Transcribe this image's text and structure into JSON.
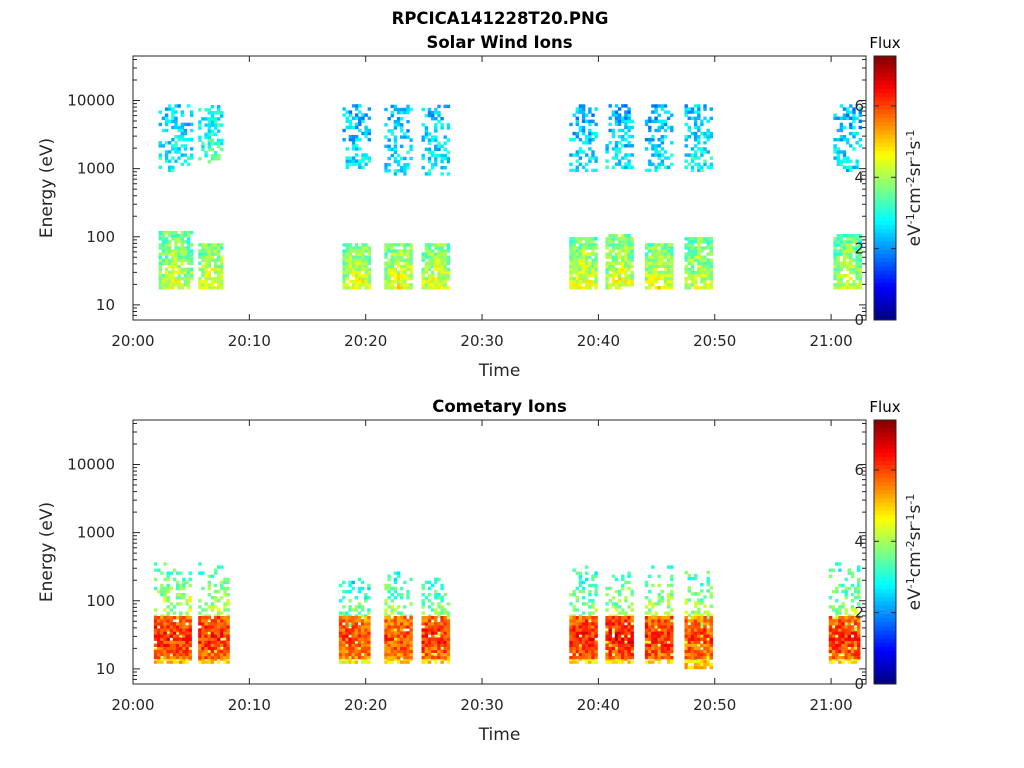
{
  "figure_title": "RPCICA141228T20.PNG",
  "chart_data": [
    {
      "type": "heatmap",
      "title": "Solar Wind Ions",
      "xlabel": "Time",
      "ylabel": "Energy (eV)",
      "xticks": [
        "20:00",
        "20:10",
        "20:20",
        "20:30",
        "20:40",
        "20:50",
        "21:00"
      ],
      "xlim": [
        "20:00",
        "21:03"
      ],
      "yscale": "log",
      "yticks": [
        10,
        100,
        1000,
        10000
      ],
      "ylim": [
        6,
        45000
      ],
      "colorbar": {
        "title": "Flux",
        "label": "eV-1cm-2sr-1s-1",
        "ticks": [
          0,
          2,
          4,
          6
        ],
        "range": [
          0,
          7.4
        ],
        "colormap": "jet"
      },
      "bursts": [
        {
          "start": "20:02.2",
          "end": "20:04.9",
          "low_band": {
            "emin": 17,
            "emax": 110,
            "flux": 3.6
          },
          "high_band": {
            "emin": 900,
            "emax": 8000,
            "flux": 2.6
          }
        },
        {
          "start": "20:05.6",
          "end": "20:07.6",
          "low_band": {
            "emin": 17,
            "emax": 80,
            "flux": 3.8
          },
          "high_band": {
            "emin": 1200,
            "emax": 8000,
            "flux": 3.0
          }
        },
        {
          "start": "20:18.0",
          "end": "20:20.3",
          "low_band": {
            "emin": 17,
            "emax": 80,
            "flux": 3.8
          },
          "high_band": {
            "emin": 1000,
            "emax": 8000,
            "flux": 2.4
          }
        },
        {
          "start": "20:21.6",
          "end": "20:24.0",
          "low_band": {
            "emin": 17,
            "emax": 80,
            "flux": 3.8
          },
          "high_band": {
            "emin": 800,
            "emax": 8000,
            "flux": 2.5
          }
        },
        {
          "start": "20:24.8",
          "end": "20:27.0",
          "low_band": {
            "emin": 17,
            "emax": 80,
            "flux": 3.8
          },
          "high_band": {
            "emin": 800,
            "emax": 8000,
            "flux": 2.5
          }
        },
        {
          "start": "20:37.5",
          "end": "20:39.8",
          "low_band": {
            "emin": 17,
            "emax": 90,
            "flux": 3.8
          },
          "high_band": {
            "emin": 900,
            "emax": 8000,
            "flux": 2.4
          }
        },
        {
          "start": "20:40.6",
          "end": "20:43.0",
          "low_band": {
            "emin": 17,
            "emax": 100,
            "flux": 3.8
          },
          "high_band": {
            "emin": 1000,
            "emax": 8000,
            "flux": 2.4
          }
        },
        {
          "start": "20:44.0",
          "end": "20:46.2",
          "low_band": {
            "emin": 17,
            "emax": 80,
            "flux": 3.8
          },
          "high_band": {
            "emin": 900,
            "emax": 8000,
            "flux": 2.4
          }
        },
        {
          "start": "20:47.4",
          "end": "20:49.7",
          "low_band": {
            "emin": 17,
            "emax": 90,
            "flux": 3.6
          },
          "high_band": {
            "emin": 900,
            "emax": 8000,
            "flux": 2.6
          }
        },
        {
          "start": "21:00.2",
          "end": "21:02.4",
          "low_band": {
            "emin": 17,
            "emax": 100,
            "flux": 3.6
          },
          "high_band": {
            "emin": 900,
            "emax": 8000,
            "flux": 2.4
          }
        }
      ]
    },
    {
      "type": "heatmap",
      "title": "Cometary Ions",
      "xlabel": "Time",
      "ylabel": "Energy (eV)",
      "xticks": [
        "20:00",
        "20:10",
        "20:20",
        "20:30",
        "20:40",
        "20:50",
        "21:00"
      ],
      "xlim": [
        "20:00",
        "21:03"
      ],
      "yscale": "log",
      "yticks": [
        10,
        100,
        1000,
        10000
      ],
      "ylim": [
        6,
        45000
      ],
      "colorbar": {
        "title": "Flux",
        "label": "eV-1cm-2sr-1s-1",
        "ticks": [
          0,
          2,
          4,
          6
        ],
        "range": [
          0,
          7.4
        ],
        "colormap": "jet"
      },
      "bursts": [
        {
          "start": "20:01.8",
          "end": "20:04.9",
          "core": {
            "emin": 14,
            "emax": 55,
            "flux": 6.2
          },
          "halo": {
            "emin": 12,
            "emax": 350,
            "flux": 3.8
          }
        },
        {
          "start": "20:05.6",
          "end": "20:08.1",
          "core": {
            "emin": 14,
            "emax": 55,
            "flux": 6.2
          },
          "halo": {
            "emin": 12,
            "emax": 350,
            "flux": 3.8
          }
        },
        {
          "start": "20:17.7",
          "end": "20:20.3",
          "core": {
            "emin": 14,
            "emax": 55,
            "flux": 6.0
          },
          "halo": {
            "emin": 12,
            "emax": 200,
            "flux": 3.4
          }
        },
        {
          "start": "20:21.6",
          "end": "20:24.0",
          "core": {
            "emin": 14,
            "emax": 55,
            "flux": 6.0
          },
          "halo": {
            "emin": 12,
            "emax": 250,
            "flux": 3.6
          }
        },
        {
          "start": "20:24.8",
          "end": "20:27.0",
          "core": {
            "emin": 14,
            "emax": 55,
            "flux": 6.2
          },
          "halo": {
            "emin": 12,
            "emax": 200,
            "flux": 3.6
          }
        },
        {
          "start": "20:37.5",
          "end": "20:39.8",
          "core": {
            "emin": 14,
            "emax": 55,
            "flux": 6.2
          },
          "halo": {
            "emin": 12,
            "emax": 300,
            "flux": 3.6
          }
        },
        {
          "start": "20:40.6",
          "end": "20:43.0",
          "core": {
            "emin": 14,
            "emax": 55,
            "flux": 6.4
          },
          "halo": {
            "emin": 12,
            "emax": 250,
            "flux": 3.8
          }
        },
        {
          "start": "20:44.0",
          "end": "20:46.2",
          "core": {
            "emin": 14,
            "emax": 55,
            "flux": 6.2
          },
          "halo": {
            "emin": 12,
            "emax": 300,
            "flux": 3.8
          }
        },
        {
          "start": "20:47.4",
          "end": "20:49.7",
          "core": {
            "emin": 14,
            "emax": 55,
            "flux": 6.0
          },
          "halo": {
            "emin": 10,
            "emax": 250,
            "flux": 3.8
          }
        },
        {
          "start": "20:59.8",
          "end": "21:02.4",
          "core": {
            "emin": 14,
            "emax": 55,
            "flux": 6.2
          },
          "halo": {
            "emin": 12,
            "emax": 350,
            "flux": 3.6
          }
        }
      ]
    }
  ]
}
